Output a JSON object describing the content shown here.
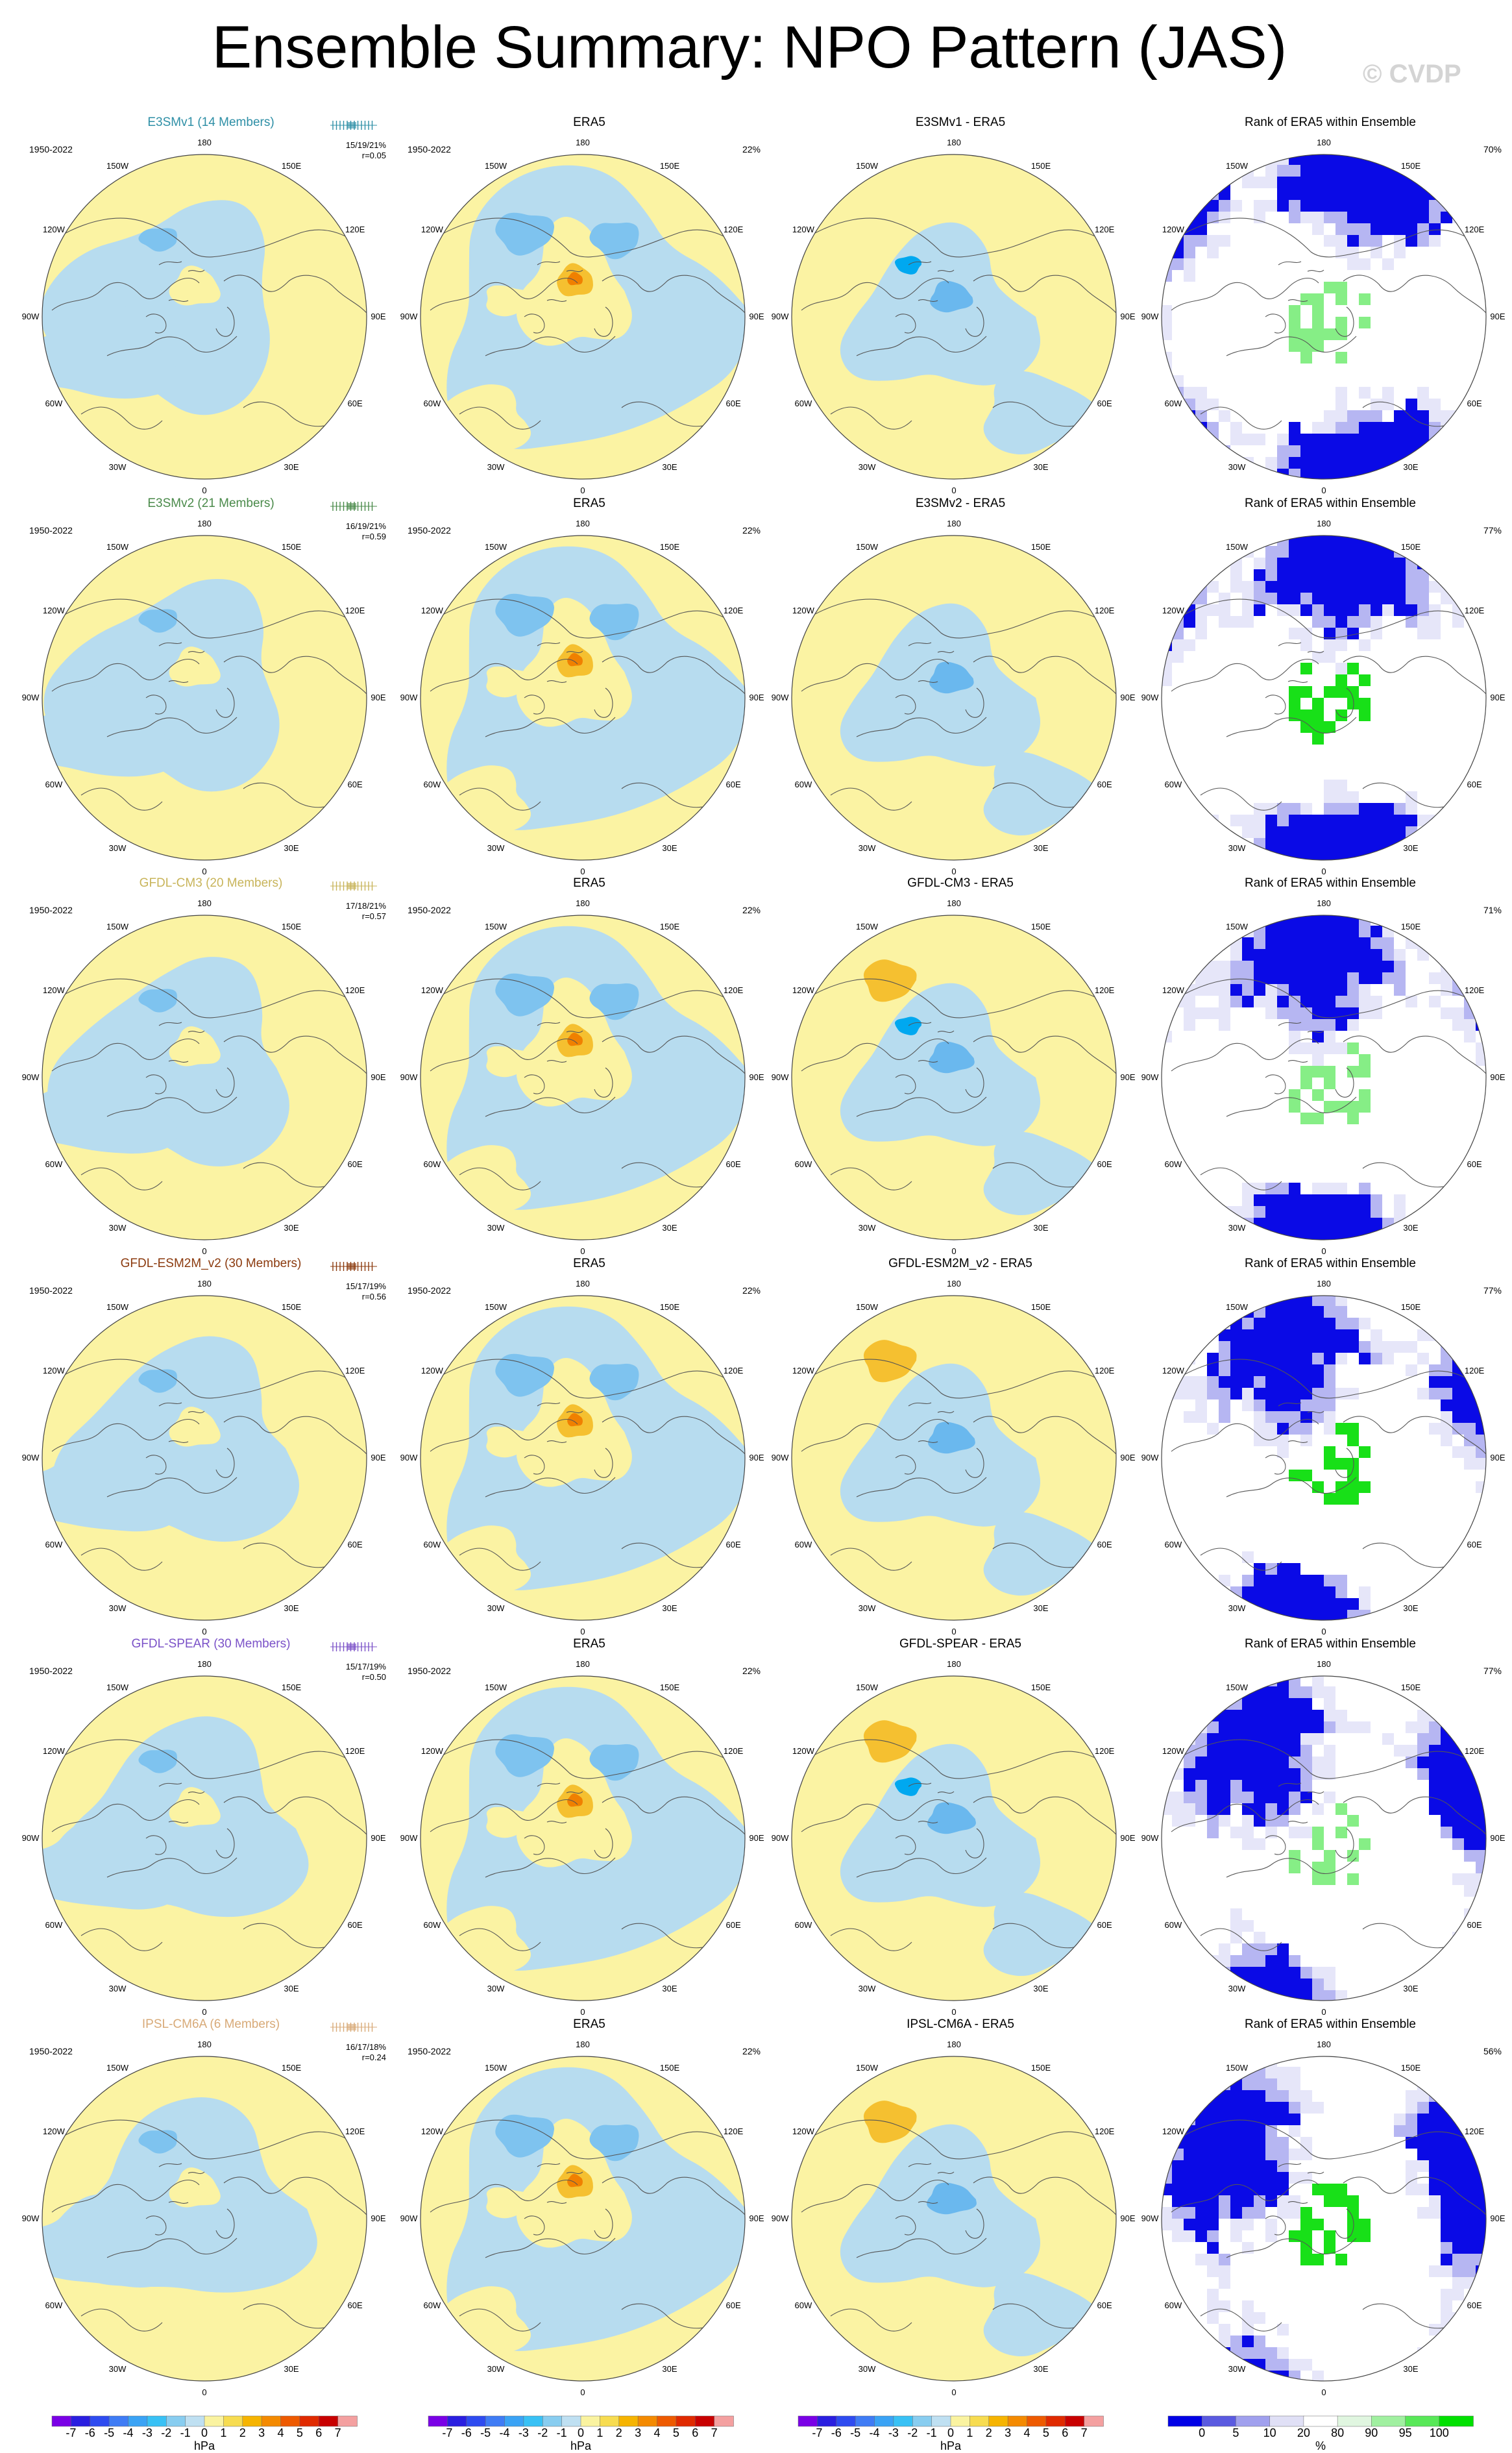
{
  "title": "Ensemble Summary: NPO Pattern (JAS)",
  "watermark": "© CVDP",
  "lon_labels": [
    "180",
    "150E",
    "120E",
    "90E",
    "60E",
    "30E",
    "0",
    "30W",
    "60W",
    "90W",
    "120W",
    "150W"
  ],
  "rows": [
    {
      "ensemble": {
        "title": "E3SMv1 (14 Members)",
        "color": "#2e8fa6",
        "years": "1950-2022",
        "stats": "15/19/21%",
        "r": "r=0.05"
      },
      "obs": {
        "title": "ERA5",
        "years": "1950-2022",
        "pct": "22%"
      },
      "diff": {
        "title": "E3SMv1 - ERA5"
      },
      "rank": {
        "title": "Rank of ERA5 within Ensemble",
        "pct": "70%"
      }
    },
    {
      "ensemble": {
        "title": "E3SMv2 (21 Members)",
        "color": "#4a8a4a",
        "years": "1950-2022",
        "stats": "16/19/21%",
        "r": "r=0.59"
      },
      "obs": {
        "title": "ERA5",
        "years": "1950-2022",
        "pct": "22%"
      },
      "diff": {
        "title": "E3SMv2 - ERA5"
      },
      "rank": {
        "title": "Rank of ERA5 within Ensemble",
        "pct": "77%"
      }
    },
    {
      "ensemble": {
        "title": "GFDL-CM3 (20 Members)",
        "color": "#c8b45a",
        "years": "1950-2022",
        "stats": "17/18/21%",
        "r": "r=0.57"
      },
      "obs": {
        "title": "ERA5",
        "years": "1950-2022",
        "pct": "22%"
      },
      "diff": {
        "title": "GFDL-CM3 - ERA5"
      },
      "rank": {
        "title": "Rank of ERA5 within Ensemble",
        "pct": "71%"
      }
    },
    {
      "ensemble": {
        "title": "GFDL-ESM2M_v2 (30 Members)",
        "color": "#8b3a0e",
        "years": "1950-2022",
        "stats": "15/17/19%",
        "r": "r=0.56"
      },
      "obs": {
        "title": "ERA5",
        "years": "1950-2022",
        "pct": "22%"
      },
      "diff": {
        "title": "GFDL-ESM2M_v2 - ERA5"
      },
      "rank": {
        "title": "Rank of ERA5 within Ensemble",
        "pct": "77%"
      }
    },
    {
      "ensemble": {
        "title": "GFDL-SPEAR (30 Members)",
        "color": "#7b52c8",
        "years": "1950-2022",
        "stats": "15/17/19%",
        "r": "r=0.50"
      },
      "obs": {
        "title": "ERA5",
        "years": "1950-2022",
        "pct": "22%"
      },
      "diff": {
        "title": "GFDL-SPEAR - ERA5"
      },
      "rank": {
        "title": "Rank of ERA5 within Ensemble",
        "pct": "77%"
      }
    },
    {
      "ensemble": {
        "title": "IPSL-CM6A (6 Members)",
        "color": "#d8aa78",
        "years": "1950-2022",
        "stats": "16/17/18%",
        "r": "r=0.24"
      },
      "obs": {
        "title": "ERA5",
        "years": "1950-2022",
        "pct": "22%"
      },
      "diff": {
        "title": "IPSL-CM6A - ERA5"
      },
      "rank": {
        "title": "Rank of ERA5 within Ensemble",
        "pct": "56%"
      }
    }
  ],
  "colorbars": {
    "hpa": {
      "label": "hPa",
      "ticks": [
        "-7",
        "-6",
        "-5",
        "-4",
        "-3",
        "-2",
        "-1",
        "0",
        "1",
        "2",
        "3",
        "4",
        "5",
        "6",
        "7"
      ],
      "colors": [
        "#7a00e6",
        "#2a1ee0",
        "#2e4bf0",
        "#3f7cf5",
        "#3aa3f5",
        "#38c1f5",
        "#88cdf0",
        "#bfe0f2",
        "#faf3a0",
        "#f7dc50",
        "#f6b400",
        "#f48a00",
        "#ee5a00",
        "#e02a00",
        "#c80000",
        "#f4a0a0"
      ]
    },
    "percent": {
      "label": "%",
      "ticks": [
        "0",
        "5",
        "10",
        "20",
        "80",
        "90",
        "95",
        "100"
      ],
      "colors": [
        "#0000e6",
        "#5a5ae0",
        "#a0a0ee",
        "#e0e0f6",
        "#ffffff",
        "#e0f6e0",
        "#a0f0a0",
        "#58e858",
        "#00e000"
      ]
    }
  },
  "fill_colors": {
    "positive": "#fbf3a3",
    "negative": "#b7dcef",
    "pos_strong": "#f5c030",
    "neg_strong": "#6ab8ee",
    "neg_core": "#00a8f0",
    "pos_core": "#f08000",
    "rank_low": "#0a0ae6",
    "rank_mid": "#b6b6f2",
    "rank_faint": "#e6e6f9",
    "rank_high": "#86ee86",
    "rank_top": "#18e018"
  }
}
